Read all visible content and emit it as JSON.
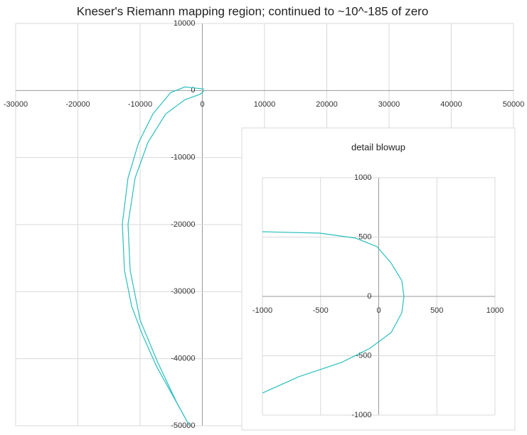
{
  "chart_data": [
    {
      "type": "scatter",
      "title": "Kneser's Riemann mapping region; continued to ~10^-185 of zero",
      "color": "#2bbfbf",
      "grid": true,
      "x": [
        286,
        -2800,
        -5086,
        -7943,
        -10229,
        -11943,
        -12857,
        -12514,
        -11371,
        -9657,
        -7371,
        -4514,
        -2114,
        -4171,
        -7143,
        -10000,
        -11600,
        -11943,
        -10800,
        -8743,
        -5886,
        -2800,
        -286,
        286
      ],
      "values": [
        212,
        530,
        -318,
        -3498,
        -7738,
        -13039,
        -19930,
        -26820,
        -32121,
        -36361,
        -41132,
        -45902,
        -49930,
        -46432,
        -40602,
        -34242,
        -26820,
        -19930,
        -13039,
        -7738,
        -3498,
        -1378,
        -530,
        0
      ],
      "xlim": [
        -30000,
        50000
      ],
      "xticks": [
        -30000,
        -20000,
        -10000,
        0,
        10000,
        20000,
        30000,
        40000,
        50000
      ],
      "ylim": [
        -50000,
        10000
      ],
      "yticks": [
        10000,
        0,
        -10000,
        -20000,
        -30000,
        -40000,
        -50000
      ]
    },
    {
      "type": "scatter",
      "title": "detail blowup",
      "color": "#2bbfbf",
      "grid": true,
      "x": [
        -1000,
        -505,
        -199,
        -15,
        107,
        199,
        217,
        199,
        107,
        -76,
        -321,
        -688,
        -1000
      ],
      "values": [
        545,
        533,
        491,
        419,
        281,
        132,
        0,
        -138,
        -305,
        -437,
        -557,
        -677,
        -814
      ],
      "xlim": [
        -1000,
        1000
      ],
      "xticks": [
        -1000,
        -500,
        0,
        500,
        1000
      ],
      "ylim": [
        -1000,
        1000
      ],
      "yticks": [
        1000,
        500,
        0,
        -500,
        -1000
      ]
    }
  ]
}
